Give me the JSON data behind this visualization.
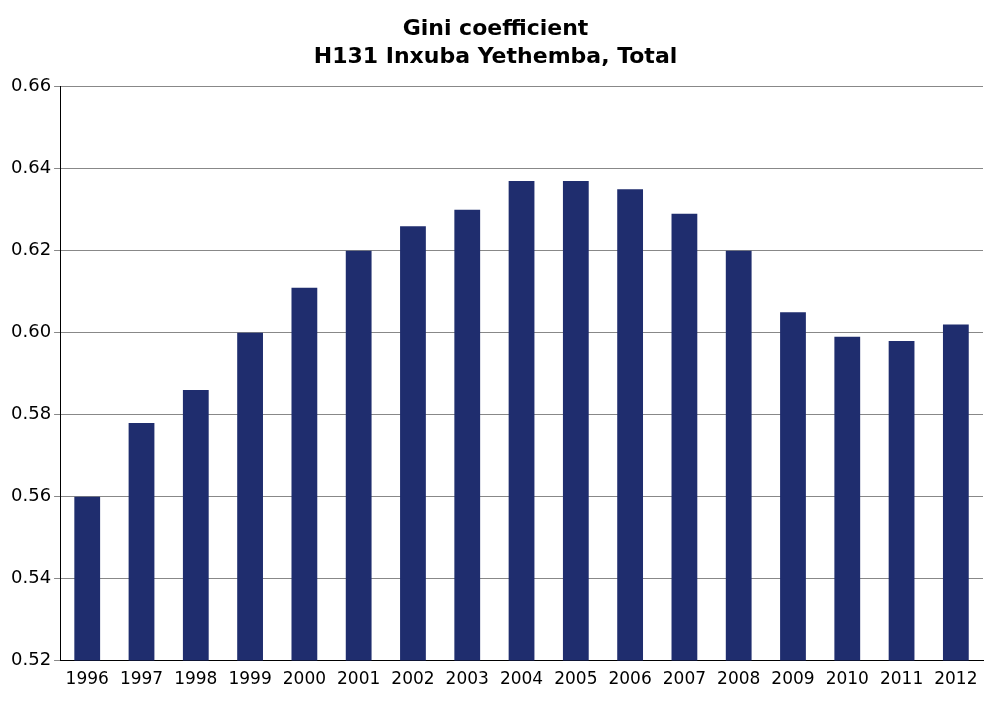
{
  "chart_data": {
    "type": "bar",
    "title": "Gini coefficient",
    "subtitle": "H131 Inxuba Yethemba, Total",
    "categories": [
      "1996",
      "1997",
      "1998",
      "1999",
      "2000",
      "2001",
      "2002",
      "2003",
      "2004",
      "2005",
      "2006",
      "2007",
      "2008",
      "2009",
      "2010",
      "2011",
      "2012"
    ],
    "values": [
      0.56,
      0.578,
      0.586,
      0.6,
      0.611,
      0.62,
      0.626,
      0.63,
      0.637,
      0.637,
      0.635,
      0.629,
      0.62,
      0.605,
      0.599,
      0.598,
      0.602
    ],
    "color": "#1f2d6e",
    "ylim": [
      0.52,
      0.66
    ],
    "yticks": [
      {
        "value": 0.52,
        "label": "0.52"
      },
      {
        "value": 0.54,
        "label": "0.54"
      },
      {
        "value": 0.56,
        "label": "0.56"
      },
      {
        "value": 0.58,
        "label": "0.58"
      },
      {
        "value": 0.6,
        "label": "0.60"
      },
      {
        "value": 0.62,
        "label": "0.62"
      },
      {
        "value": 0.64,
        "label": "0.64"
      },
      {
        "value": 0.66,
        "label": "0.66"
      }
    ],
    "grid": "y",
    "legend": false
  }
}
